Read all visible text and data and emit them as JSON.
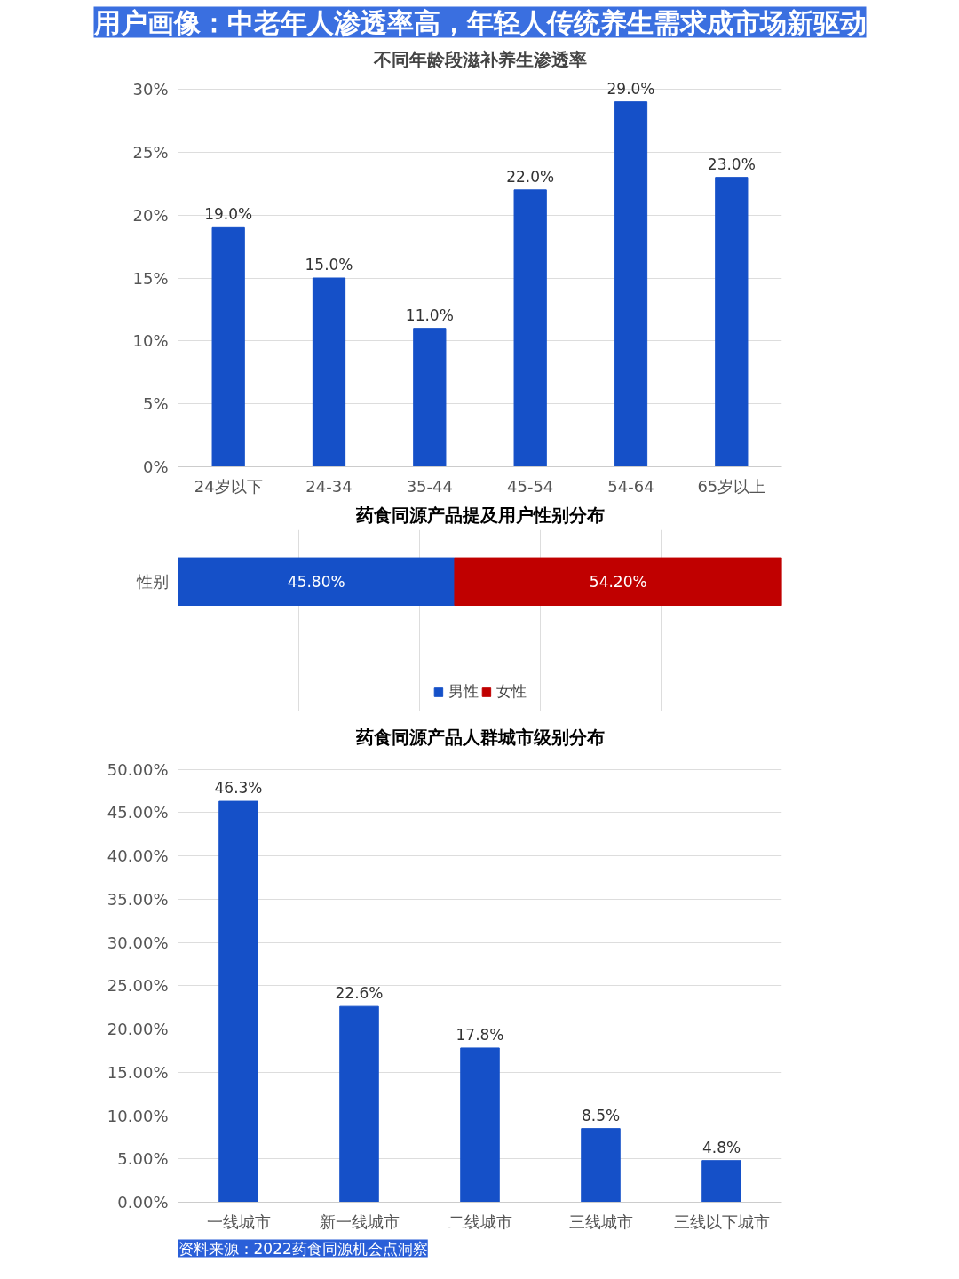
{
  "chart_data": [
    {
      "type": "bar",
      "title": "用户画像：中老年人渗透率高，年轻人传统养生需求成市场新驱动",
      "subtitle": "不同年龄段滋补养生渗透率",
      "categories": [
        "24岁以下",
        "24-34",
        "35-44",
        "45-54",
        "54-64",
        "65岁以上"
      ],
      "series": [
        {
          "color": "#1550c8",
          "values": [
            19,
            15,
            11,
            22,
            29,
            23
          ],
          "value_labels": [
            "19.0%",
            "15.0%",
            "11.0%",
            "22.0%",
            "29.0%",
            "23.0%"
          ]
        }
      ],
      "ylim": [
        0,
        30
      ],
      "yticks": [
        {
          "value": 0,
          "label": "0%"
        },
        {
          "value": 5,
          "label": "5%"
        },
        {
          "value": 10,
          "label": "10%"
        },
        {
          "value": 15,
          "label": "15%"
        },
        {
          "value": 20,
          "label": "20%"
        },
        {
          "value": 25,
          "label": "25%"
        },
        {
          "value": 30,
          "label": "30%"
        }
      ],
      "grid": "y"
    },
    {
      "type": "bar",
      "title": "药食同源产品提及用户性别分布",
      "orientation": "horizontal",
      "stacked": true,
      "categories": [
        "性别"
      ],
      "series": [
        {
          "name": "男性",
          "color": "#1550c8",
          "values": [
            45.8
          ],
          "value_labels": [
            "45.80%"
          ]
        },
        {
          "name": "女性",
          "color": "#c00000",
          "values": [
            54.2
          ],
          "value_labels": [
            "54.20%"
          ]
        }
      ],
      "xlim": [
        0,
        100
      ],
      "grid": "x",
      "tick_labels": "y",
      "legend": "bottom"
    },
    {
      "type": "bar",
      "title": "药食同源产品人群城市级别分布",
      "categories": [
        "一线城市",
        "新一线城市",
        "二线城市",
        "三线城市",
        "三线以下城市"
      ],
      "series": [
        {
          "color": "#1550c8",
          "values": [
            46.3,
            22.6,
            17.8,
            8.5,
            4.8
          ],
          "value_labels": [
            "46.3%",
            "22.6%",
            "17.8%",
            "8.5%",
            "4.8%"
          ]
        }
      ],
      "ylim": [
        0,
        50
      ],
      "yticks": [
        {
          "value": 0,
          "label": "0.00%"
        },
        {
          "value": 5,
          "label": "5.00%"
        },
        {
          "value": 10,
          "label": "10.00%"
        },
        {
          "value": 15,
          "label": "15.00%"
        },
        {
          "value": 20,
          "label": "20.00%"
        },
        {
          "value": 25,
          "label": "25.00%"
        },
        {
          "value": 30,
          "label": "30.00%"
        },
        {
          "value": 35,
          "label": "35.00%"
        },
        {
          "value": 40,
          "label": "40.00%"
        },
        {
          "value": 45,
          "label": "45.00%"
        },
        {
          "value": 50,
          "label": "50.00%"
        }
      ],
      "grid": "y",
      "annotations": [
        "资料来源：2022药食同源机会点洞察"
      ]
    }
  ]
}
